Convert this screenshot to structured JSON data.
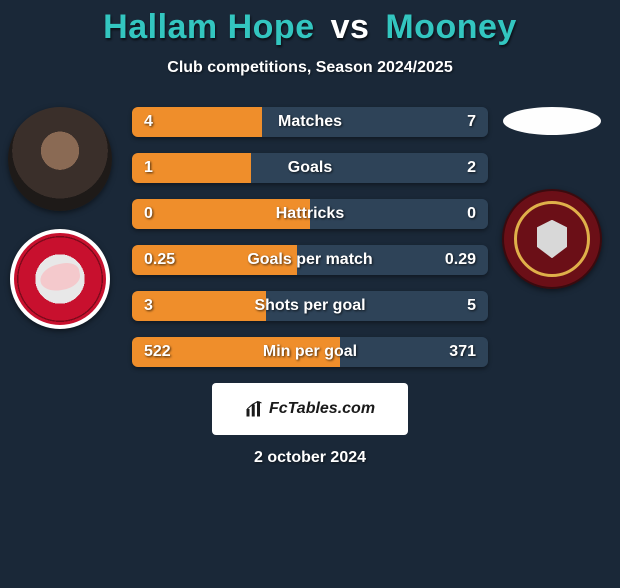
{
  "title": {
    "player1": "Hallam Hope",
    "vs": "vs",
    "player2": "Mooney",
    "player1_color": "#33c6c0",
    "vs_color": "#ffffff",
    "player2_color": "#33c6c0"
  },
  "subtitle": "Club competitions, Season 2024/2025",
  "colors": {
    "bg": "#1a2838",
    "bar_left": "#ef8e2b",
    "bar_right": "#2e4358",
    "text": "#ffffff"
  },
  "bars": [
    {
      "label": "Matches",
      "left": "4",
      "right": "7",
      "left_pct": 36.4,
      "right_pct": 63.6
    },
    {
      "label": "Goals",
      "left": "1",
      "right": "2",
      "left_pct": 33.3,
      "right_pct": 66.7
    },
    {
      "label": "Hattricks",
      "left": "0",
      "right": "0",
      "left_pct": 50.0,
      "right_pct": 50.0
    },
    {
      "label": "Goals per match",
      "left": "0.25",
      "right": "0.29",
      "left_pct": 46.3,
      "right_pct": 53.7
    },
    {
      "label": "Shots per goal",
      "left": "3",
      "right": "5",
      "left_pct": 37.5,
      "right_pct": 62.5
    },
    {
      "label": "Min per goal",
      "left": "522",
      "right": "371",
      "left_pct": 58.5,
      "right_pct": 41.5
    }
  ],
  "footer": {
    "brand": "FcTables.com"
  },
  "date": "2 october 2024"
}
